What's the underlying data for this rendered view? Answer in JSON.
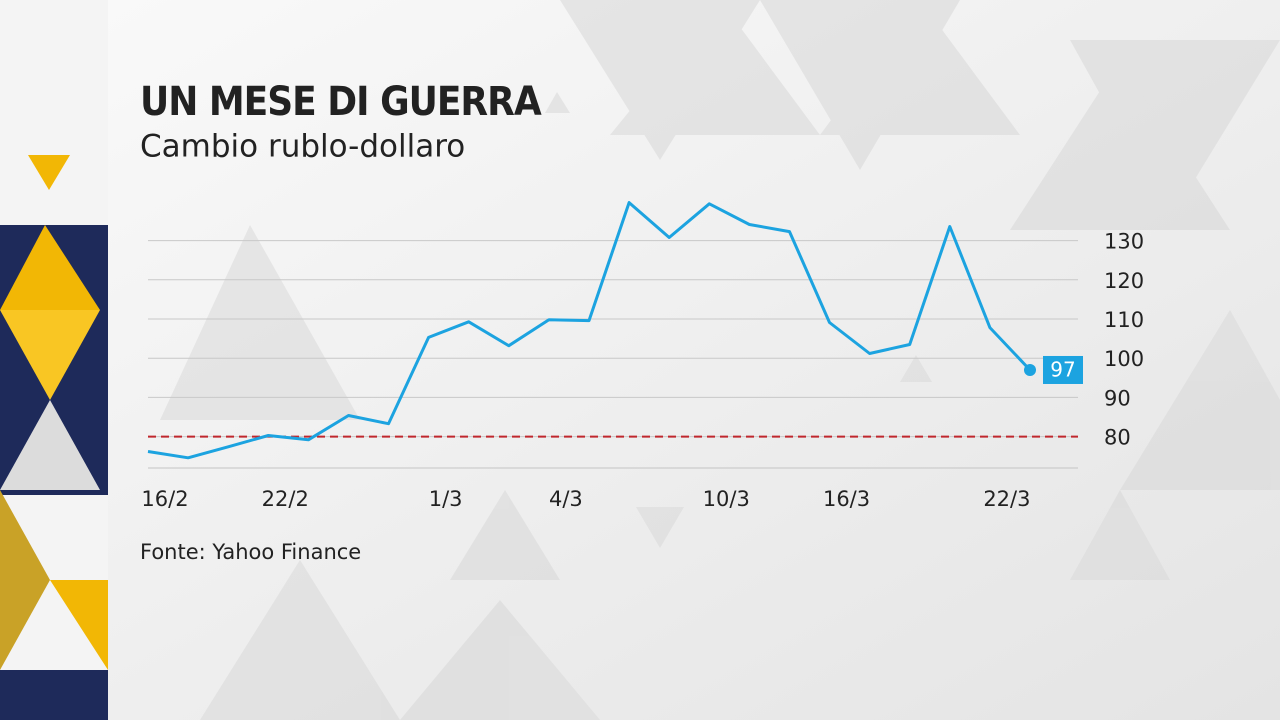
{
  "chart_data": {
    "type": "line",
    "title": "UN MESE DI GUERRA",
    "subtitle": "Cambio rublo-dollaro",
    "source": "Fonte: Yahoo Finance",
    "categories": [
      "16/2",
      null,
      null,
      "22/2",
      null,
      null,
      null,
      "1/3",
      null,
      null,
      "4/3",
      null,
      null,
      null,
      "10/3",
      null,
      null,
      "16/3",
      null,
      null,
      null,
      "22/3",
      null
    ],
    "series": [
      {
        "color": "#1ca3e0",
        "values": [
          76.2,
          74.6,
          77.4,
          80.3,
          79.2,
          85.4,
          83.3,
          105.3,
          109.3,
          103.2,
          109.8,
          109.6,
          139.7,
          130.8,
          139.4,
          134.1,
          132.3,
          109.1,
          101.2,
          103.5,
          133.6,
          107.8,
          97
        ]
      }
    ],
    "ylim": [
      72,
      140
    ],
    "yticks": [
      80,
      90,
      100,
      110,
      120,
      130
    ],
    "grid": true,
    "reference_line": {
      "value": 80,
      "color": "#c0272d"
    }
  }
}
